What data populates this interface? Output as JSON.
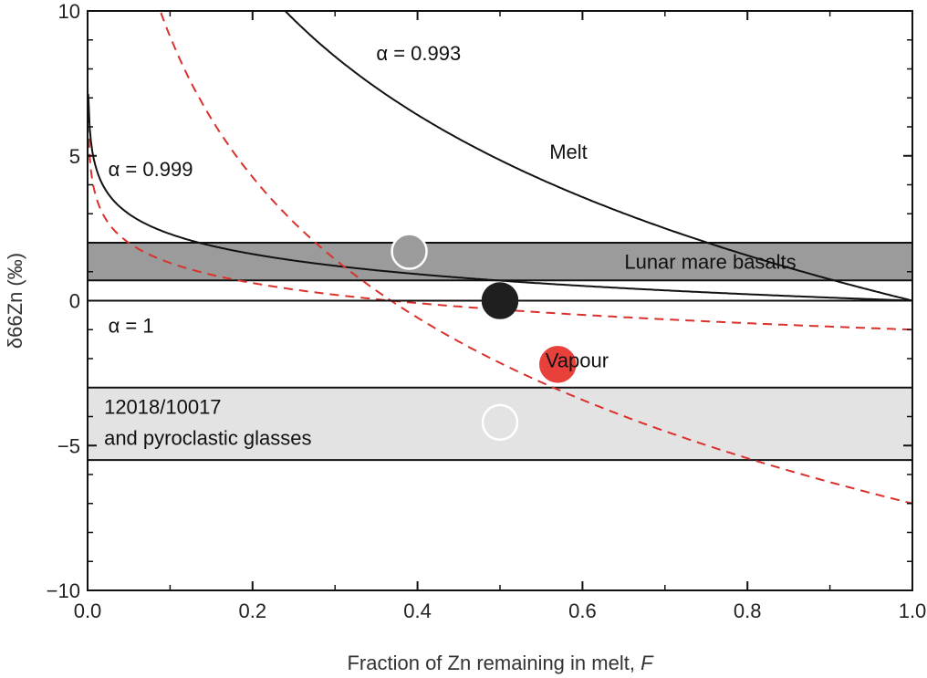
{
  "chart_data": {
    "type": "line",
    "title": "",
    "xlabel": "Fraction of Zn remaining in melt, ",
    "xlabel_italic": "F",
    "ylabel": "δ66Zn (‰)",
    "xlim": [
      0,
      1
    ],
    "ylim": [
      -10,
      10
    ],
    "x_ticks": [
      0,
      0.2,
      0.4,
      0.6,
      0.8,
      1
    ],
    "x_tick_labels": [
      "0.0",
      "0.2",
      "0.4",
      "0.6",
      "0.8",
      "1.0"
    ],
    "y_ticks": [
      -10,
      -5,
      0,
      5,
      10
    ],
    "y_tick_labels": [
      "−10",
      "−5",
      "0",
      "5",
      "10"
    ],
    "grid": false,
    "bands": [
      {
        "label": "Lunar mare basalts",
        "y_range": [
          0.7,
          2.0
        ],
        "color": "#9b9b9b",
        "label_color": "#ffffff"
      },
      {
        "label_lines": [
          "12018/10017",
          "and pyroclastic glasses"
        ],
        "y_range": [
          -5.5,
          -3.0
        ],
        "color": "#e3e3e3",
        "label_color": "#111111"
      }
    ],
    "series": [
      {
        "name": "Melt",
        "label": "α = 0.993",
        "alpha": 0.993,
        "phase": "melt",
        "style": "solid",
        "color": "#111111"
      },
      {
        "label": "α = 0.999",
        "alpha": 0.999,
        "phase": "melt",
        "style": "solid",
        "color": "#111111"
      },
      {
        "label": "α = 1",
        "alpha": 1.0,
        "phase": "melt",
        "style": "solid",
        "color": "#111111"
      },
      {
        "name": "Vapour",
        "alpha": 0.993,
        "phase": "vapour",
        "style": "dashed",
        "color": "#d9312b"
      },
      {
        "alpha": 0.999,
        "phase": "vapour",
        "style": "dashed",
        "color": "#d9312b"
      }
    ],
    "points": [
      {
        "x": 0.39,
        "y": 1.7,
        "fill": "#9b9b9b",
        "stroke": "#ffffff"
      },
      {
        "x": 0.5,
        "y": 0.0,
        "fill": "#1f1f1f",
        "stroke": "#1f1f1f"
      },
      {
        "x": 0.57,
        "y": -2.2,
        "fill": "#e8403a",
        "stroke": "#e8403a"
      },
      {
        "x": 0.5,
        "y": -4.2,
        "fill": "#e3e3e3",
        "stroke": "#ffffff"
      }
    ],
    "annotations": [
      {
        "text": "α = 0.993",
        "x": 0.35,
        "y": 8.3
      },
      {
        "text": "α = 0.999",
        "x": 0.025,
        "y": 4.3
      },
      {
        "text": "α = 1",
        "x": 0.025,
        "y": -1.1
      },
      {
        "text": "Melt",
        "x": 0.56,
        "y": 4.9
      },
      {
        "text": "Vapour",
        "x": 0.555,
        "y": -2.3,
        "color": "#d9312b"
      }
    ]
  }
}
